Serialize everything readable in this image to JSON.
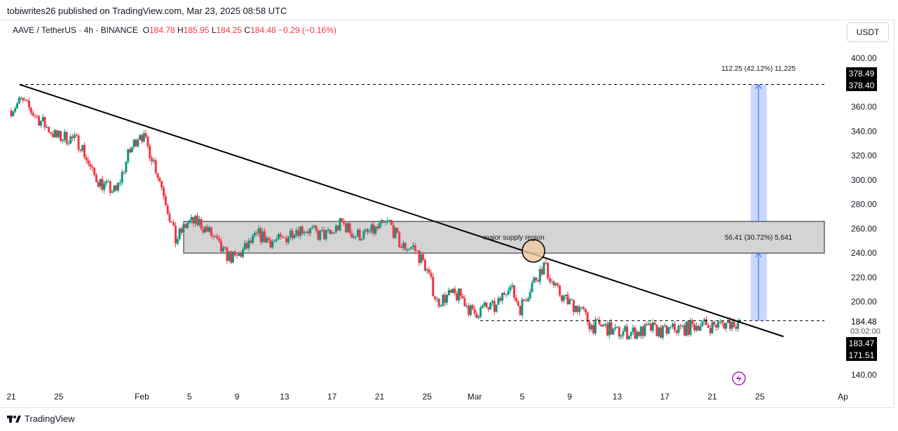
{
  "publisher": "tobiwrites26 published on TradingView.com, Mar 23, 2025 08:58 UTC",
  "symbol": "AAVE / TetherUS · 4h · BINANCE",
  "ohlc": {
    "o": "184.78",
    "h": "185.95",
    "l": "184.25",
    "c": "184.48",
    "chg": "−0.29 (−0.16%)"
  },
  "currency_button": "USDT",
  "brand": "TradingView",
  "labels": {
    "price_upper_a": "378.49",
    "price_upper_b": "378.40",
    "last_price": "184.48",
    "countdown": "03:02:00",
    "low_a": "183.47",
    "low_b": "171.51"
  },
  "annotations": {
    "supply": "major supply region",
    "measure_lower": "56.41 (30.72%) 5,641",
    "measure_upper": "112.25 (42.12%) 11,225"
  },
  "colors": {
    "up": "#089981",
    "down": "#f23645",
    "measure": "#2962ff"
  },
  "chart_data": {
    "type": "candlestick",
    "title": "AAVE / TetherUS 4h",
    "ylim": [
      140,
      400
    ],
    "y_ticks": [
      140,
      160,
      180,
      200,
      220,
      240,
      260,
      280,
      300,
      320,
      340,
      360,
      380,
      400
    ],
    "x_ticks": [
      "21",
      "25",
      "Feb",
      "5",
      "9",
      "13",
      "17",
      "21",
      "25",
      "Mar",
      "5",
      "9",
      "13",
      "17",
      "21",
      "25",
      "Ap"
    ],
    "x_tick_days": [
      0,
      4,
      11,
      15,
      19,
      23,
      27,
      31,
      35,
      39,
      43,
      47,
      51,
      55,
      59,
      63,
      70
    ],
    "daily_close_from_jan21": [
      365,
      355,
      345,
      335,
      335,
      330,
      305,
      295,
      290,
      320,
      340,
      320,
      290,
      250,
      265,
      265,
      255,
      240,
      235,
      245,
      255,
      250,
      250,
      260,
      260,
      255,
      255,
      265,
      255,
      255,
      260,
      265,
      245,
      245,
      230,
      200,
      205,
      205,
      190,
      195,
      195,
      215,
      195,
      215,
      230,
      210,
      200,
      195,
      180,
      180,
      175,
      175,
      175,
      178,
      175,
      178,
      178,
      182,
      180,
      182,
      183,
      184.5
    ],
    "supply_zone": [
      240,
      266
    ],
    "trendline": {
      "from": {
        "day": 0.7,
        "price": 378.4
      },
      "to": {
        "day": 65,
        "price": 171.5
      }
    },
    "levels": [
      378.4,
      184.48
    ]
  }
}
